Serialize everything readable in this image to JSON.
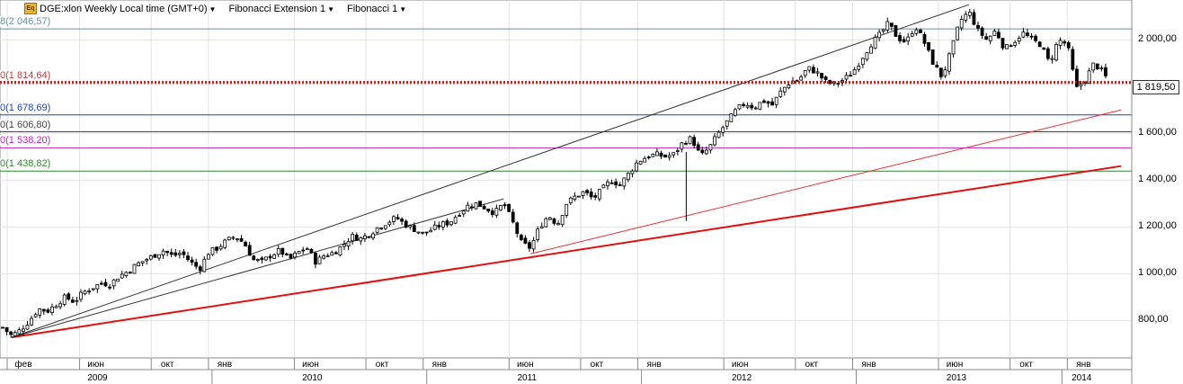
{
  "header": {
    "logo_text": "Eq",
    "symbol_label": "DGE:xlon Weekly Local time (GMT+0)",
    "tool1_label": "Fibonacci Extension 1",
    "tool2_label": "Fibonacci 1"
  },
  "price_tag": "1 819,50",
  "fib_levels": [
    {
      "label": "8(2 046,57)",
      "value": 2046.57,
      "color": "#6a8fa0",
      "style": "solid"
    },
    {
      "label": "0(1 814,64)",
      "value": 1814.64,
      "color": "#c04040",
      "style": "dotted"
    },
    {
      "label": "0(1 678,69)",
      "value": 1678.69,
      "color": "#1a3fd0",
      "style": "solid"
    },
    {
      "label": "0(1 606,80)",
      "value": 1606.8,
      "color": "#444444",
      "style": "solid"
    },
    {
      "label": "0(1 538,20)",
      "value": 1538.2,
      "color": "#c020c0",
      "style": "solid"
    },
    {
      "label": "0(1 438,82)",
      "value": 1438.82,
      "color": "#2a8a2a",
      "style": "solid"
    }
  ],
  "chart_data": {
    "type": "candlestick",
    "title": "DGE:xlon Weekly",
    "ylim": [
      640,
      2170
    ],
    "y_ticks": [
      {
        "value": 800,
        "label": "800,00"
      },
      {
        "value": 1000,
        "label": "1 000,00"
      },
      {
        "value": 1200,
        "label": "1 200,00"
      },
      {
        "value": 1400,
        "label": "1 400,00"
      },
      {
        "value": 1600,
        "label": "1 600,00"
      },
      {
        "value": 2000,
        "label": "2 000,00"
      }
    ],
    "month_ticks": [
      {
        "label": "фев",
        "t": 0.25
      },
      {
        "label": "июн",
        "t": 4.3
      },
      {
        "label": "окт",
        "t": 8.3
      },
      {
        "label": "янв",
        "t": 11.5
      },
      {
        "label": "июн",
        "t": 16.3
      },
      {
        "label": "окт",
        "t": 20.3
      },
      {
        "label": "янв",
        "t": 23.5
      },
      {
        "label": "июн",
        "t": 28.3
      },
      {
        "label": "окт",
        "t": 32.3
      },
      {
        "label": "янв",
        "t": 35.5
      },
      {
        "label": "июн",
        "t": 40.3
      },
      {
        "label": "окт",
        "t": 44.3
      },
      {
        "label": "янв",
        "t": 47.5
      },
      {
        "label": "июн",
        "t": 52.3
      },
      {
        "label": "окт",
        "t": 56.3
      },
      {
        "label": "янв",
        "t": 59.5
      }
    ],
    "year_ticks": [
      {
        "label": "2009",
        "t": 5.3
      },
      {
        "label": "2010",
        "t": 17.3
      },
      {
        "label": "2011",
        "t": 29.3
      },
      {
        "label": "2012",
        "t": 41.3
      },
      {
        "label": "2013",
        "t": 53.3
      },
      {
        "label": "2014",
        "t": 60.3
      }
    ],
    "series_close_path": [
      [
        0.0,
        770
      ],
      [
        0.5,
        735
      ],
      [
        1.0,
        760
      ],
      [
        1.5,
        800
      ],
      [
        2.0,
        850
      ],
      [
        2.5,
        840
      ],
      [
        3.0,
        870
      ],
      [
        3.5,
        900
      ],
      [
        4.0,
        880
      ],
      [
        4.5,
        920
      ],
      [
        5.0,
        940
      ],
      [
        5.5,
        960
      ],
      [
        6.0,
        955
      ],
      [
        6.5,
        990
      ],
      [
        7.0,
        1010
      ],
      [
        7.5,
        1040
      ],
      [
        8.0,
        1060
      ],
      [
        8.5,
        1080
      ],
      [
        9.0,
        1100
      ],
      [
        9.5,
        1075
      ],
      [
        10.0,
        1090
      ],
      [
        10.5,
        1050
      ],
      [
        11.0,
        1020
      ],
      [
        11.5,
        1090
      ],
      [
        12.0,
        1110
      ],
      [
        12.5,
        1140
      ],
      [
        13.0,
        1160
      ],
      [
        13.5,
        1130
      ],
      [
        14.0,
        1060
      ],
      [
        14.5,
        1050
      ],
      [
        15.0,
        1080
      ],
      [
        15.5,
        1100
      ],
      [
        16.0,
        1060
      ],
      [
        16.5,
        1090
      ],
      [
        17.0,
        1110
      ],
      [
        17.5,
        1050
      ],
      [
        18.0,
        1080
      ],
      [
        18.5,
        1090
      ],
      [
        19.0,
        1120
      ],
      [
        19.5,
        1160
      ],
      [
        20.0,
        1150
      ],
      [
        20.5,
        1170
      ],
      [
        21.0,
        1200
      ],
      [
        21.5,
        1220
      ],
      [
        22.0,
        1240
      ],
      [
        22.5,
        1210
      ],
      [
        23.0,
        1190
      ],
      [
        23.5,
        1170
      ],
      [
        24.0,
        1190
      ],
      [
        24.5,
        1210
      ],
      [
        25.0,
        1220
      ],
      [
        25.5,
        1260
      ],
      [
        26.0,
        1290
      ],
      [
        26.5,
        1300
      ],
      [
        27.0,
        1280
      ],
      [
        27.5,
        1260
      ],
      [
        28.0,
        1300
      ],
      [
        28.5,
        1220
      ],
      [
        29.0,
        1130
      ],
      [
        29.5,
        1110
      ],
      [
        30.0,
        1200
      ],
      [
        30.5,
        1250
      ],
      [
        31.0,
        1210
      ],
      [
        31.5,
        1300
      ],
      [
        32.0,
        1330
      ],
      [
        32.5,
        1350
      ],
      [
        33.0,
        1320
      ],
      [
        33.5,
        1360
      ],
      [
        34.0,
        1400
      ],
      [
        34.5,
        1380
      ],
      [
        35.0,
        1430
      ],
      [
        35.5,
        1480
      ],
      [
        36.0,
        1500
      ],
      [
        36.5,
        1510
      ],
      [
        37.0,
        1500
      ],
      [
        37.5,
        1510
      ],
      [
        38.0,
        1560
      ],
      [
        38.5,
        1580
      ],
      [
        39.0,
        1500
      ],
      [
        39.5,
        1540
      ],
      [
        40.0,
        1600
      ],
      [
        40.5,
        1650
      ],
      [
        41.0,
        1700
      ],
      [
        41.5,
        1730
      ],
      [
        42.0,
        1710
      ],
      [
        42.5,
        1740
      ],
      [
        43.0,
        1720
      ],
      [
        43.5,
        1780
      ],
      [
        44.0,
        1820
      ],
      [
        44.5,
        1830
      ],
      [
        45.0,
        1880
      ],
      [
        45.5,
        1860
      ],
      [
        46.0,
        1820
      ],
      [
        46.5,
        1810
      ],
      [
        47.0,
        1830
      ],
      [
        47.5,
        1860
      ],
      [
        48.0,
        1920
      ],
      [
        48.5,
        1980
      ],
      [
        49.0,
        2020
      ],
      [
        49.5,
        2070
      ],
      [
        50.0,
        2010
      ],
      [
        50.5,
        1990
      ],
      [
        51.0,
        2060
      ],
      [
        51.5,
        1990
      ],
      [
        52.0,
        1900
      ],
      [
        52.5,
        1840
      ],
      [
        53.0,
        1950
      ],
      [
        53.5,
        2080
      ],
      [
        54.0,
        2120
      ],
      [
        54.5,
        2040
      ],
      [
        55.0,
        2000
      ],
      [
        55.5,
        2040
      ],
      [
        56.0,
        1960
      ],
      [
        56.5,
        1990
      ],
      [
        57.0,
        2030
      ],
      [
        57.5,
        2000
      ],
      [
        58.0,
        1980
      ],
      [
        58.5,
        1900
      ],
      [
        59.0,
        2000
      ],
      [
        59.5,
        1980
      ],
      [
        60.0,
        1790
      ],
      [
        60.5,
        1830
      ],
      [
        61.0,
        1900
      ],
      [
        61.5,
        1860
      ],
      [
        61.8,
        1820
      ]
    ],
    "trendlines": [
      {
        "name": "support-main",
        "from": [
          0.5,
          728
        ],
        "to": [
          62.5,
          1460
        ],
        "color": "#e01010",
        "width": 2
      },
      {
        "name": "support-thin",
        "from": [
          29.5,
          1085
        ],
        "to": [
          62.5,
          1700
        ],
        "color": "#e83030",
        "width": 1
      },
      {
        "name": "channel-upper",
        "from": [
          0.5,
          728
        ],
        "to": [
          54.0,
          2150
        ],
        "color": "#333333",
        "width": 1
      },
      {
        "name": "channel-lower",
        "from": [
          0.5,
          728
        ],
        "to": [
          28.0,
          1320
        ],
        "color": "#333333",
        "width": 1
      },
      {
        "name": "spike-2011",
        "from": [
          38.2,
          1225
        ],
        "to": [
          38.2,
          1520
        ],
        "color": "#000000",
        "width": 1
      }
    ],
    "last_price": 1819.5,
    "grid": true
  }
}
